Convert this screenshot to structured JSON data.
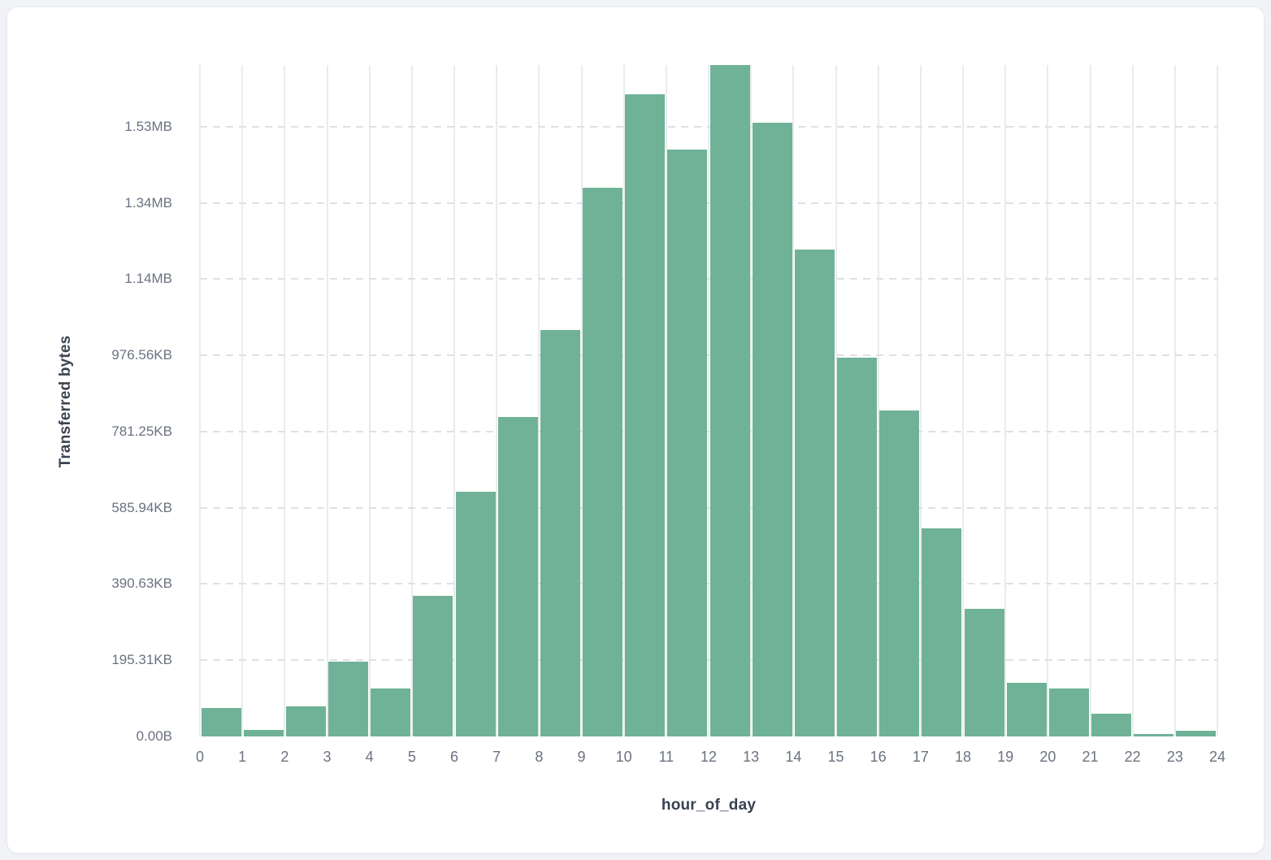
{
  "page": {
    "background_color": "#f1f3f6",
    "card_background": "#ffffff"
  },
  "chart_data": {
    "type": "bar",
    "title": "",
    "xlabel": "hour_of_day",
    "ylabel": "Transferred bytes",
    "bar_color": "#6fb298",
    "grid": {
      "vertical": "solid",
      "horizontal": "dashed",
      "vertical_color": "#e9ebef",
      "horizontal_color": "#dde1e7"
    },
    "x_bins": [
      0,
      1,
      2,
      3,
      4,
      5,
      6,
      7,
      8,
      9,
      10,
      11,
      12,
      13,
      14,
      15,
      16,
      17,
      18,
      19,
      20,
      21,
      22,
      23
    ],
    "values_bytes": [
      75000,
      18000,
      80000,
      197000,
      126000,
      370000,
      642000,
      839000,
      1067000,
      1440000,
      1686000,
      1540000,
      1762000,
      1610000,
      1277000,
      994000,
      855000,
      546000,
      334000,
      141000,
      126000,
      60000,
      7000,
      14000
    ],
    "x_ticks": [
      "0",
      "1",
      "2",
      "3",
      "4",
      "5",
      "6",
      "7",
      "8",
      "9",
      "10",
      "11",
      "12",
      "13",
      "14",
      "15",
      "16",
      "17",
      "18",
      "19",
      "20",
      "21",
      "22",
      "23",
      "24"
    ],
    "y_ticks": [
      {
        "label": "0.00B",
        "value": 0
      },
      {
        "label": "195.31KB",
        "value": 200000
      },
      {
        "label": "390.63KB",
        "value": 400000
      },
      {
        "label": "585.94KB",
        "value": 600000
      },
      {
        "label": "781.25KB",
        "value": 800000
      },
      {
        "label": "976.56KB",
        "value": 1000000
      },
      {
        "label": "1.14MB",
        "value": 1200000
      },
      {
        "label": "1.34MB",
        "value": 1400000
      },
      {
        "label": "1.53MB",
        "value": 1600000
      }
    ],
    "ylim": [
      0,
      1762000
    ],
    "xlim": [
      0,
      24
    ],
    "legend": "none"
  }
}
